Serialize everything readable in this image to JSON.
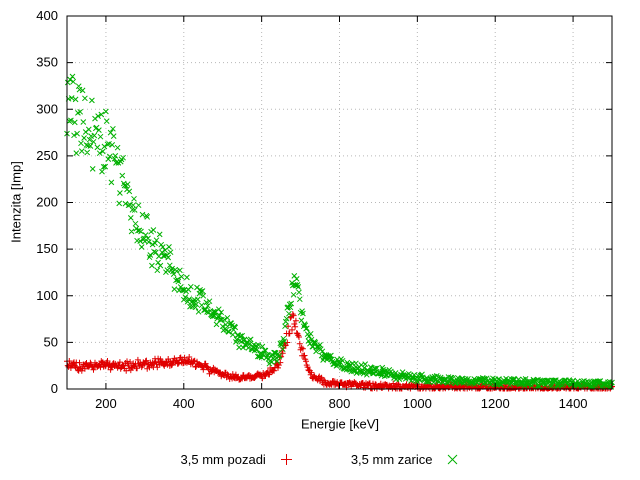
{
  "figure": {
    "background": "#ffffff",
    "border_color": "#000000",
    "grid_color": "#b8b8b8",
    "tick_label_color": "#000000"
  },
  "chart_data": {
    "type": "scatter",
    "title": "",
    "xlabel": "Energie [keV]",
    "ylabel": "Intenzita [Imp]",
    "xlim": [
      100,
      1500
    ],
    "ylim": [
      0,
      400
    ],
    "xticks": [
      200,
      400,
      600,
      800,
      1000,
      1200,
      1400
    ],
    "yticks": [
      0,
      50,
      100,
      150,
      200,
      250,
      300,
      350,
      400
    ],
    "grid": true,
    "legend_position": "bottom-center",
    "series": [
      {
        "name": "3,5 mm pozadi",
        "marker": "plus",
        "color": "#e00000",
        "sample_step_kev": 2,
        "noise_rel": 0.12,
        "noise_abs": 3,
        "envelope": [
          [
            100,
            26
          ],
          [
            150,
            24
          ],
          [
            200,
            26
          ],
          [
            250,
            25
          ],
          [
            300,
            27
          ],
          [
            350,
            29
          ],
          [
            400,
            30
          ],
          [
            430,
            28
          ],
          [
            460,
            22
          ],
          [
            500,
            15
          ],
          [
            540,
            12
          ],
          [
            580,
            13
          ],
          [
            620,
            18
          ],
          [
            640,
            25
          ],
          [
            660,
            48
          ],
          [
            675,
            72
          ],
          [
            685,
            75
          ],
          [
            700,
            45
          ],
          [
            715,
            25
          ],
          [
            730,
            14
          ],
          [
            760,
            8
          ],
          [
            800,
            5
          ],
          [
            850,
            4
          ],
          [
            900,
            3
          ],
          [
            1000,
            2
          ],
          [
            1100,
            2
          ],
          [
            1200,
            2
          ],
          [
            1300,
            2
          ],
          [
            1400,
            2
          ],
          [
            1500,
            2
          ]
        ]
      },
      {
        "name": "3,5 mm zarice",
        "marker": "cross",
        "color": "#00b000",
        "sample_step_kev": 2,
        "noise_rel": 0.14,
        "noise_abs": 3.5,
        "envelope": [
          [
            100,
            310
          ],
          [
            115,
            300
          ],
          [
            130,
            290
          ],
          [
            150,
            280
          ],
          [
            170,
            272
          ],
          [
            190,
            268
          ],
          [
            210,
            258
          ],
          [
            230,
            235
          ],
          [
            250,
            210
          ],
          [
            270,
            190
          ],
          [
            290,
            172
          ],
          [
            310,
            160
          ],
          [
            330,
            150
          ],
          [
            350,
            140
          ],
          [
            370,
            128
          ],
          [
            390,
            115
          ],
          [
            410,
            105
          ],
          [
            430,
            100
          ],
          [
            450,
            92
          ],
          [
            470,
            85
          ],
          [
            500,
            72
          ],
          [
            530,
            60
          ],
          [
            560,
            48
          ],
          [
            590,
            40
          ],
          [
            620,
            34
          ],
          [
            640,
            36
          ],
          [
            660,
            60
          ],
          [
            675,
            100
          ],
          [
            685,
            112
          ],
          [
            695,
            95
          ],
          [
            710,
            70
          ],
          [
            730,
            48
          ],
          [
            760,
            35
          ],
          [
            800,
            27
          ],
          [
            850,
            22
          ],
          [
            900,
            18
          ],
          [
            950,
            15
          ],
          [
            1000,
            12
          ],
          [
            1050,
            10
          ],
          [
            1100,
            9
          ],
          [
            1200,
            8
          ],
          [
            1300,
            7
          ],
          [
            1400,
            6
          ],
          [
            1500,
            5
          ]
        ]
      }
    ]
  }
}
